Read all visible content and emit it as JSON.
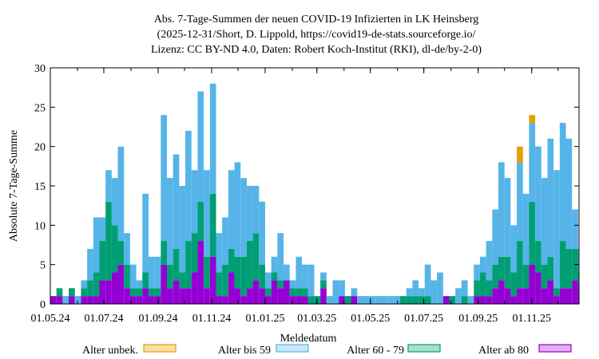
{
  "chart_data": {
    "type": "bar",
    "stacked": true,
    "title_lines": [
      "Abs. 7-Tage-Summen der neuen COVID-19 Infizierten in LK Heinsberg",
      "(2025-12-31/Short, D. Lippold, https://covid19-de-stats.sourceforge.io/",
      "Lizenz: CC BY-ND 4.0, Daten: Robert Koch-Institut (RKI), dl-de/by-2-0)"
    ],
    "xlabel": "Meldedatum",
    "ylabel": "Absolute 7-Tage-Summe",
    "xlim": [
      "2024-05-01",
      "2025-12-25"
    ],
    "ylim": [
      0,
      30
    ],
    "yticks": [
      0,
      5,
      10,
      15,
      20,
      25,
      30
    ],
    "xticks": [
      {
        "date": "2024-05-01",
        "label": "01.05.24"
      },
      {
        "date": "2024-07-01",
        "label": "01.07.24"
      },
      {
        "date": "2024-09-01",
        "label": "01.09.24"
      },
      {
        "date": "2024-11-01",
        "label": "01.11.24"
      },
      {
        "date": "2025-01-01",
        "label": "01.01.25"
      },
      {
        "date": "2025-03-01",
        "label": "01.03.25"
      },
      {
        "date": "2025-05-01",
        "label": "01.05.25"
      },
      {
        "date": "2025-07-01",
        "label": "01.07.25"
      },
      {
        "date": "2025-09-01",
        "label": "01.09.25"
      },
      {
        "date": "2025-11-01",
        "label": "01.11.25"
      }
    ],
    "grid": false,
    "legend_placement": "bottom",
    "x_start": "2024-05-01",
    "x_step_days": 7,
    "series": [
      {
        "name": "Alter ab 80",
        "color": "#9400d3",
        "legend_fill": "#e0b0f0",
        "values": [
          1,
          1,
          0,
          1,
          0,
          1,
          1,
          1,
          3,
          3,
          4,
          5,
          2,
          1,
          1,
          2,
          1,
          1,
          5,
          2,
          3,
          2,
          2,
          4,
          8,
          2,
          6,
          1,
          1,
          4,
          2,
          1,
          2,
          3,
          2,
          1,
          3,
          2,
          3,
          1,
          1,
          1,
          0,
          0,
          2,
          0,
          0,
          1,
          0,
          1,
          0,
          0,
          0,
          0,
          0,
          0,
          0,
          0,
          0,
          0,
          0,
          0,
          0,
          0,
          1,
          0,
          0,
          0,
          0,
          1,
          1,
          1,
          2,
          3,
          2,
          1,
          2,
          2,
          5,
          4,
          2,
          3,
          1,
          2,
          2,
          3,
          2
        ]
      },
      {
        "name": "Alter 60 - 79",
        "color": "#009e73",
        "legend_fill": "#a8e0cc",
        "values": [
          0,
          1,
          0,
          1,
          0,
          1,
          2,
          3,
          5,
          10,
          6,
          3,
          3,
          1,
          1,
          2,
          1,
          1,
          3,
          3,
          4,
          2,
          6,
          5,
          5,
          4,
          8,
          3,
          4,
          3,
          4,
          5,
          6,
          6,
          3,
          1,
          1,
          1,
          0,
          1,
          1,
          1,
          1,
          1,
          1,
          0,
          0,
          0,
          1,
          0,
          0,
          0,
          0,
          0,
          0,
          0,
          0,
          1,
          1,
          1,
          1,
          1,
          0,
          0,
          0,
          1,
          0,
          1,
          0,
          2,
          3,
          2,
          3,
          3,
          4,
          3,
          6,
          3,
          8,
          4,
          3,
          3,
          1,
          6,
          5,
          4,
          2
        ]
      },
      {
        "name": "Alter bis 59",
        "color": "#56b4e9",
        "legend_fill": "#c8e6f8",
        "values": [
          0,
          0,
          1,
          0,
          1,
          1,
          4,
          7,
          3,
          4,
          6,
          12,
          4,
          3,
          1,
          10,
          4,
          4,
          16,
          11,
          12,
          11,
          14,
          8,
          14,
          11,
          14,
          5,
          6,
          10,
          12,
          10,
          7,
          6,
          8,
          2,
          2,
          6,
          2,
          1,
          4,
          3,
          4,
          0,
          1,
          1,
          3,
          2,
          0,
          1,
          1,
          1,
          1,
          1,
          1,
          1,
          1,
          0,
          1,
          2,
          1,
          4,
          3,
          4,
          0,
          0,
          2,
          2,
          1,
          2,
          2,
          5,
          7,
          12,
          10,
          6,
          10,
          9,
          10,
          12,
          11,
          15,
          15,
          15,
          14,
          5,
          3
        ]
      },
      {
        "name": "Alter unbek.",
        "color": "#e69f00",
        "legend_fill": "#f8dfa8",
        "values": [
          0,
          0,
          0,
          0,
          0,
          0,
          0,
          0,
          0,
          0,
          0,
          0,
          0,
          0,
          0,
          0,
          0,
          0,
          0,
          0,
          0,
          0,
          0,
          0,
          0,
          0,
          0,
          0,
          0,
          0,
          0,
          0,
          0,
          0,
          0,
          0,
          0,
          0,
          0,
          0,
          0,
          0,
          0,
          0,
          0,
          0,
          0,
          0,
          0,
          0,
          0,
          0,
          0,
          0,
          0,
          0,
          0,
          0,
          0,
          0,
          0,
          0,
          0,
          0,
          0,
          0,
          0,
          0,
          0,
          0,
          0,
          0,
          0,
          0,
          0,
          0,
          2,
          0,
          1,
          0,
          0,
          0,
          0,
          0,
          0,
          0,
          0
        ]
      }
    ],
    "legend_order": [
      "Alter unbek.",
      "Alter bis 59",
      "Alter 60 - 79",
      "Alter ab 80"
    ]
  }
}
